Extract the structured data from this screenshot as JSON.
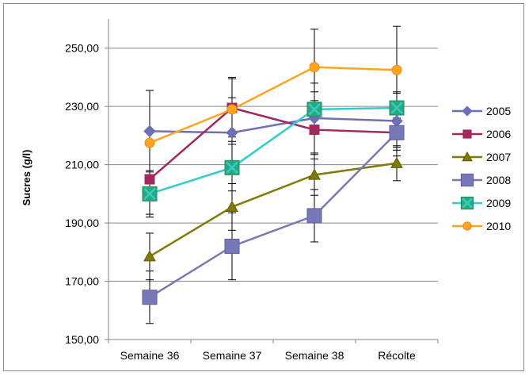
{
  "chart_data": {
    "type": "line",
    "title": "",
    "xlabel": "",
    "ylabel": "Sucres (g/l)",
    "categories": [
      "Semaine 36",
      "Semaine 37",
      "Semaine 38",
      "Récolte"
    ],
    "ylim": [
      150,
      260
    ],
    "yticks": [
      150,
      170,
      190,
      210,
      230,
      250
    ],
    "ytick_labels": [
      "150,00",
      "170,00",
      "190,00",
      "210,00",
      "230,00",
      "250,00"
    ],
    "grid": true,
    "error_bars": true,
    "legend_position": "right",
    "series": [
      {
        "name": "2005",
        "color": "#6f6fb7",
        "marker": "diamond",
        "values": [
          221.5,
          221,
          226,
          225
        ],
        "errors": [
          14,
          12,
          12,
          10
        ]
      },
      {
        "name": "2006",
        "color": "#a3285e",
        "marker": "square",
        "values": [
          205,
          229.5,
          222,
          221
        ],
        "errors": [
          12,
          10,
          10,
          8
        ]
      },
      {
        "name": "2007",
        "color": "#807a08",
        "marker": "triangle",
        "values": [
          178.5,
          195.5,
          206.5,
          210.5
        ],
        "errors": [
          8,
          8,
          7,
          6
        ]
      },
      {
        "name": "2008",
        "color": "#7878b8",
        "marker": "bigsquare",
        "values": [
          164.5,
          182,
          192.5,
          221
        ],
        "errors": [
          9,
          11.5,
          9,
          5
        ]
      },
      {
        "name": "2009",
        "color": "#33cccc",
        "marker": "xsquare",
        "values": [
          200,
          209,
          229,
          229.5
        ],
        "errors": [
          8,
          8,
          6,
          5
        ]
      },
      {
        "name": "2010",
        "color": "#ffa420",
        "marker": "circle",
        "values": [
          217.5,
          229,
          243.5,
          242.5
        ],
        "errors": [
          18,
          11,
          13,
          15
        ]
      }
    ]
  }
}
